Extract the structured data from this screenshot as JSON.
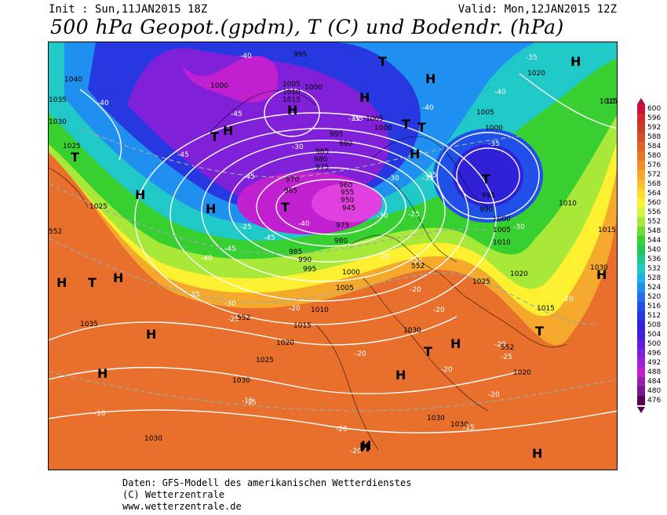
{
  "header": {
    "init": "Init : Sun,11JAN2015 18Z",
    "valid": "Valid: Mon,12JAN2015 12Z",
    "title": "500 hPa Geopot.(gpdm), T (C) und Bodendr. (hPa)"
  },
  "footer": {
    "line1": "Daten: GFS-Modell des amerikanischen Wetterdienstes",
    "line2": "(C) Wetterzentrale",
    "line3": "www.wetterzentrale.de"
  },
  "legend": {
    "values": [
      "600",
      "596",
      "592",
      "588",
      "584",
      "580",
      "576",
      "572",
      "568",
      "564",
      "560",
      "556",
      "552",
      "548",
      "544",
      "540",
      "536",
      "532",
      "528",
      "524",
      "520",
      "516",
      "512",
      "508",
      "504",
      "500",
      "496",
      "492",
      "488",
      "484",
      "480",
      "476"
    ],
    "colors": [
      "#c8103c",
      "#d42a2a",
      "#c83c28",
      "#d2502a",
      "#dc6428",
      "#e87828",
      "#f09028",
      "#f4a82c",
      "#f8c030",
      "#fcdc30",
      "#fcf030",
      "#d8f040",
      "#a8e838",
      "#70dc30",
      "#38d030",
      "#20c850",
      "#20c890",
      "#20c8c8",
      "#20b0e8",
      "#2090f0",
      "#2070f0",
      "#2050e8",
      "#2838e0",
      "#3020d8",
      "#4020d8",
      "#6020d8",
      "#8020d8",
      "#a020d8",
      "#c020d0",
      "#9820b0",
      "#781890",
      "#5a0050"
    ]
  },
  "map": {
    "pressure_labels": [
      "995",
      "1040",
      "1035",
      "1030",
      "1025",
      "1000",
      "1005",
      "1010",
      "1015",
      "1000",
      "1005",
      "1000",
      "995",
      "990",
      "985",
      "980",
      "975",
      "970",
      "965",
      "960",
      "955",
      "950",
      "945",
      "975",
      "980",
      "985",
      "990",
      "995",
      "1000",
      "1005",
      "1010",
      "1015",
      "1020",
      "1025",
      "1030",
      "1035",
      "1030",
      "1025",
      "1020",
      "1015",
      "1010",
      "1005",
      "1000",
      "995",
      "990",
      "1000",
      "1005",
      "1010",
      "1015",
      "1020",
      "1025",
      "1030",
      "1015",
      "1020",
      "1030",
      "1030",
      "1030",
      "1030"
    ],
    "temperature_labels": [
      "-40",
      "-40",
      "-45",
      "-45",
      "-45",
      "-40",
      "-35",
      "-35",
      "-40",
      "-30",
      "-35",
      "-35",
      "-30",
      "-25",
      "-25",
      "-20",
      "-25",
      "-30",
      "-45",
      "-40",
      "-45",
      "-40",
      "-35",
      "-30",
      "-25",
      "-20",
      "-20",
      "-20",
      "-20",
      "-20",
      "-20",
      "-20",
      "-20",
      "-15",
      "-15",
      "-10",
      "-15",
      "-20",
      "-25",
      "-20",
      "-35",
      "-30",
      "-35"
    ],
    "centers": [
      "H",
      "T",
      "H",
      "T",
      "H",
      "H",
      "T",
      "H",
      "H",
      "T",
      "H",
      "T",
      "T",
      "T",
      "H",
      "H",
      "H",
      "T",
      "H",
      "H",
      "H",
      "T",
      "H",
      "H",
      "H",
      "T",
      "H",
      "H"
    ],
    "height_labels": [
      "552",
      "552",
      "552",
      "552"
    ]
  }
}
